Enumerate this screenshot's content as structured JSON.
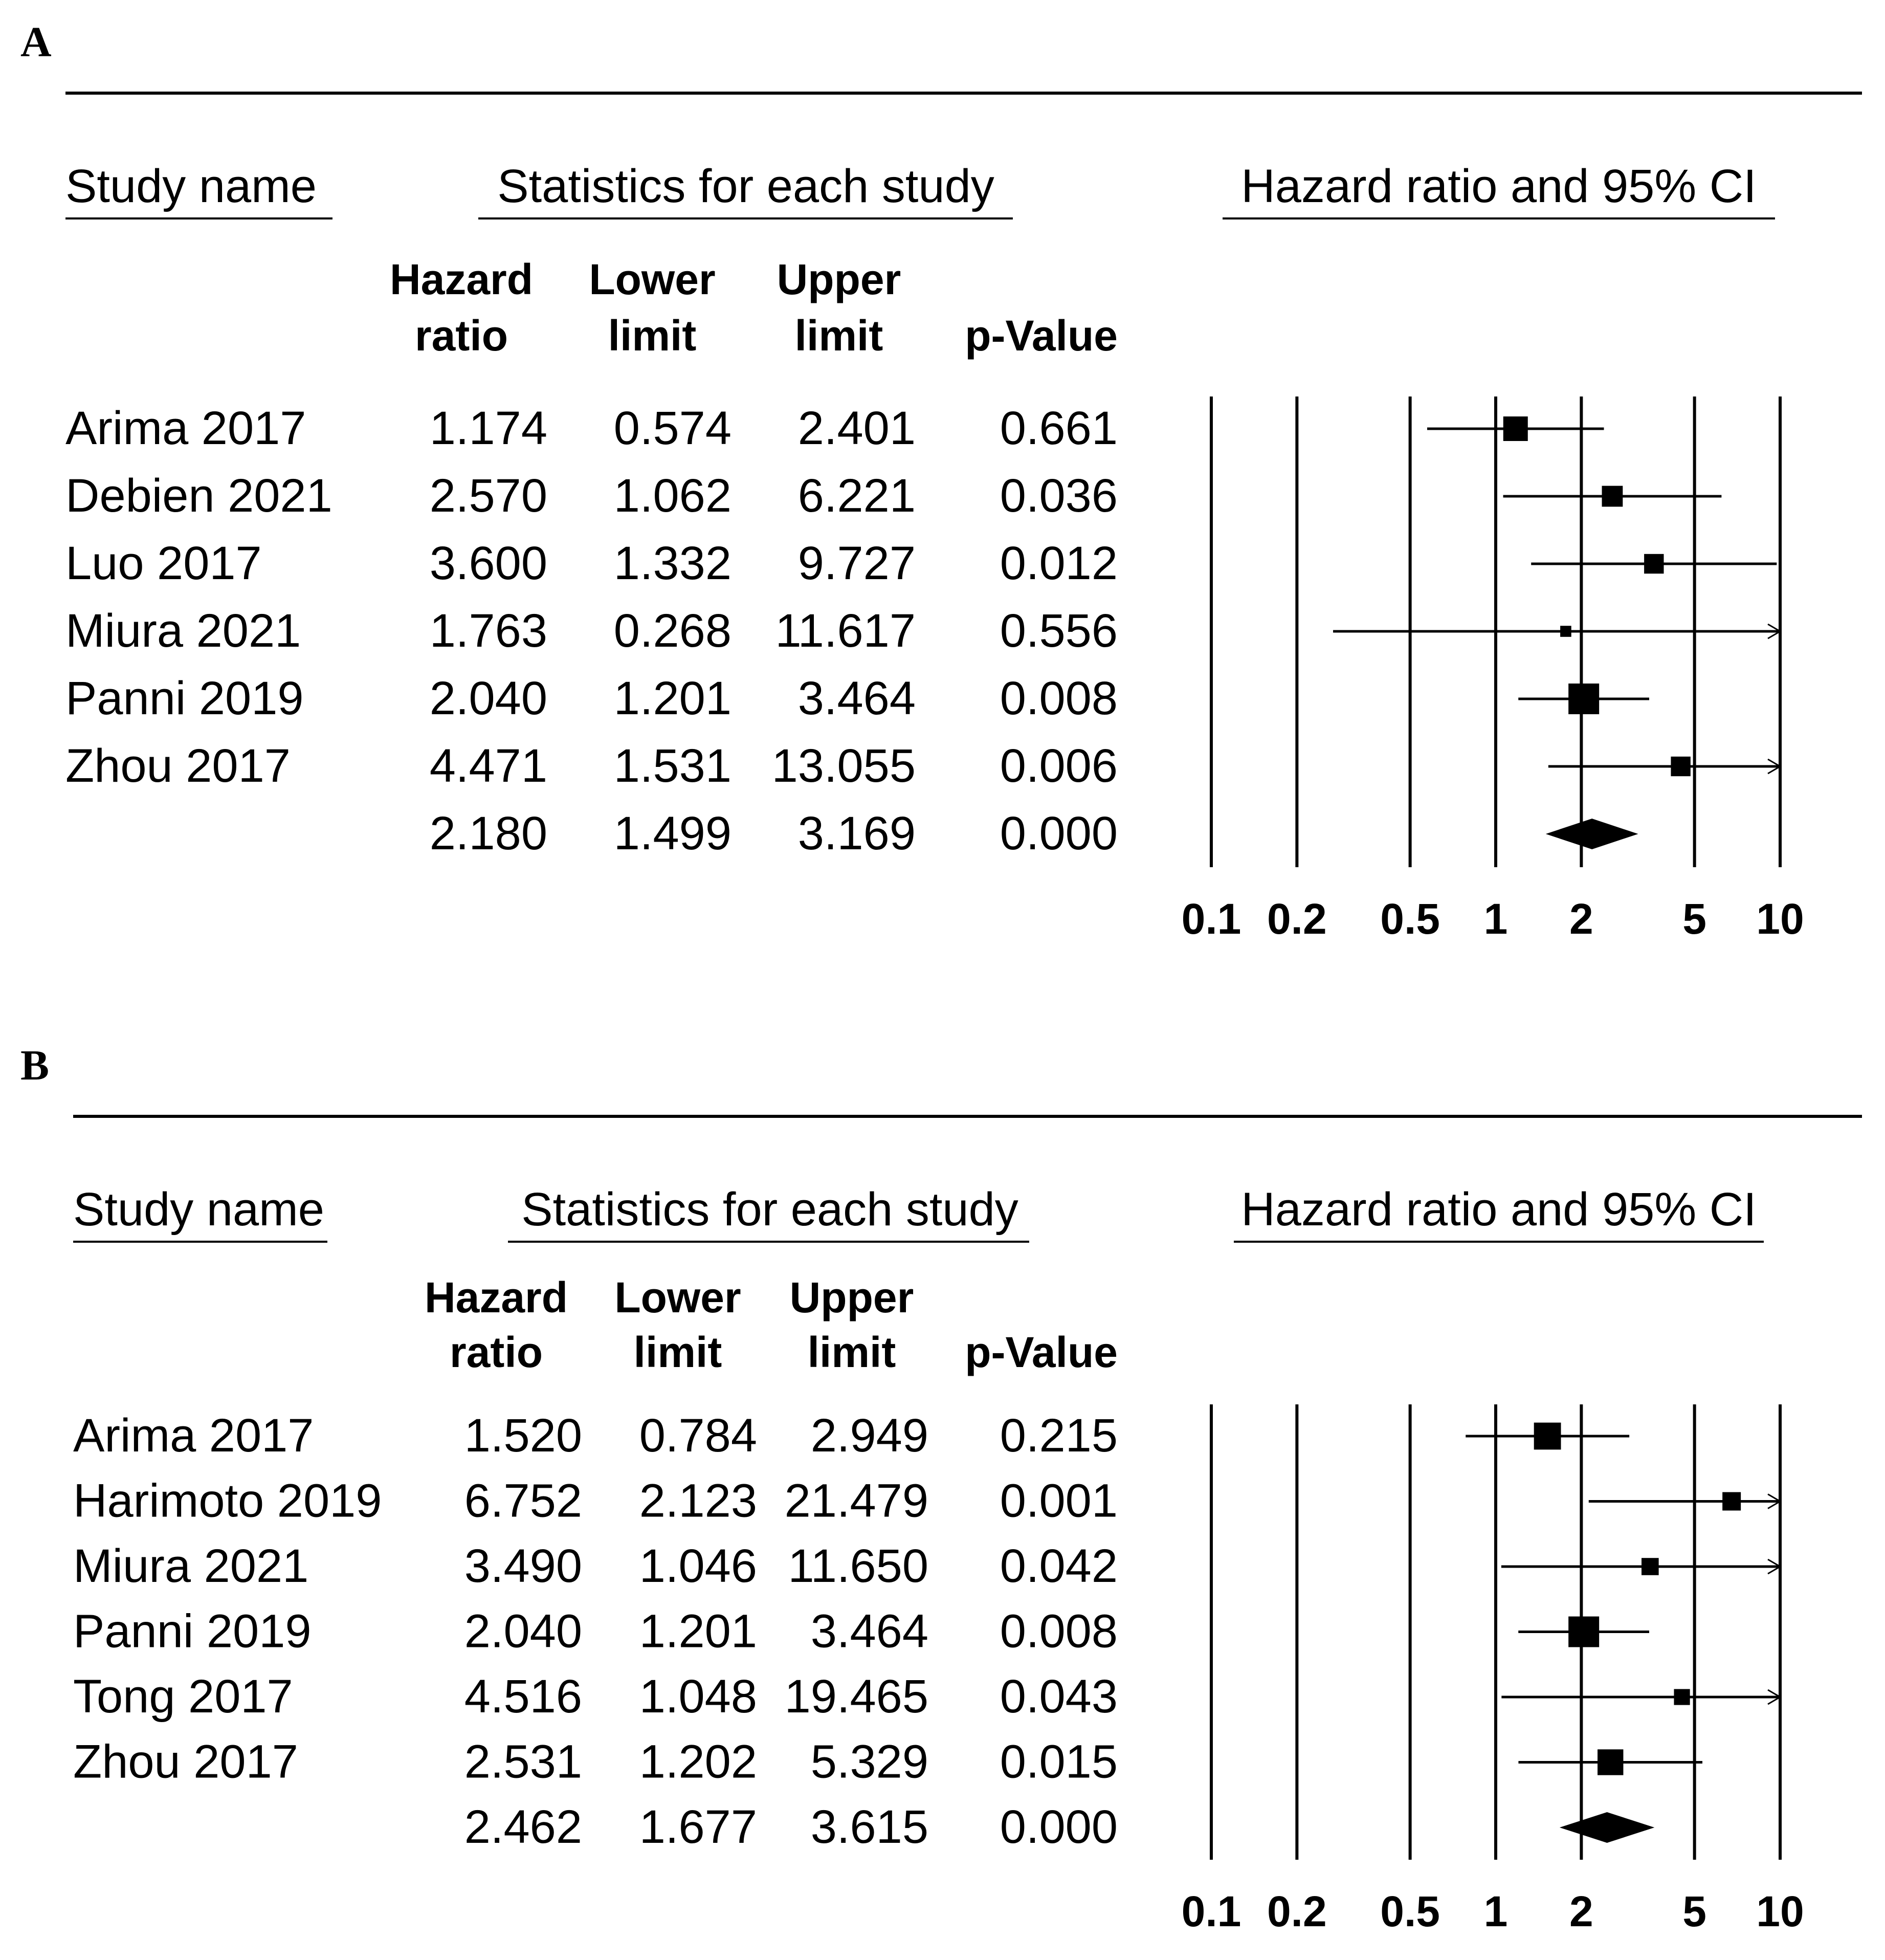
{
  "column_headers": {
    "study": "Study name",
    "stats_group": "Statistics for each study",
    "plot_group": "Hazard ratio and 95% CI",
    "hr_line1": "Hazard",
    "hr_line2": "ratio",
    "lower_line1": "Lower",
    "lower_line2": "limit",
    "upper_line1": "Upper",
    "upper_line2": "limit",
    "p": "p-Value"
  },
  "chart_data": [
    {
      "panel": "A",
      "type": "forest",
      "xscale": "log",
      "xlim": [
        0.1,
        10
      ],
      "xticks": [
        0.1,
        0.2,
        0.5,
        1,
        2,
        5,
        10
      ],
      "xtick_labels": [
        "0.1",
        "0.2",
        "0.5",
        "1",
        "2",
        "5",
        "10"
      ],
      "studies": [
        {
          "name": "Arima 2017",
          "hr": "1.174",
          "lower": "0.574",
          "upper": "2.401",
          "p": "0.661",
          "weight": 3
        },
        {
          "name": "Debien 2021",
          "hr": "2.570",
          "lower": "1.062",
          "upper": "6.221",
          "p": "0.036",
          "weight": 2.4
        },
        {
          "name": "Luo 2017",
          "hr": "3.600",
          "lower": "1.332",
          "upper": "9.727",
          "p": "0.012",
          "weight": 2.2
        },
        {
          "name": "Miura 2021",
          "hr": "1.763",
          "lower": "0.268",
          "upper": "11.617",
          "p": "0.556",
          "weight": 0.8
        },
        {
          "name": "Panni 2019",
          "hr": "2.040",
          "lower": "1.201",
          "upper": "3.464",
          "p": "0.008",
          "weight": 4
        },
        {
          "name": "Zhou 2017",
          "hr": "4.471",
          "lower": "1.531",
          "upper": "13.055",
          "p": "0.006",
          "weight": 2.2
        }
      ],
      "summary": {
        "hr": "2.180",
        "lower": "1.499",
        "upper": "3.169",
        "p": "0.000"
      }
    },
    {
      "panel": "B",
      "type": "forest",
      "xscale": "log",
      "xlim": [
        0.1,
        10
      ],
      "xticks": [
        0.1,
        0.2,
        0.5,
        1,
        2,
        5,
        10
      ],
      "xtick_labels": [
        "0.1",
        "0.2",
        "0.5",
        "1",
        "2",
        "5",
        "10"
      ],
      "studies": [
        {
          "name": "Arima 2017",
          "hr": "1.520",
          "lower": "0.784",
          "upper": "2.949",
          "p": "0.215",
          "weight": 3.4
        },
        {
          "name": "Harimoto 2019",
          "hr": "6.752",
          "lower": "2.123",
          "upper": "21.479",
          "p": "0.001",
          "weight": 2
        },
        {
          "name": "Miura 2021",
          "hr": "3.490",
          "lower": "1.046",
          "upper": "11.650",
          "p": "0.042",
          "weight": 1.8
        },
        {
          "name": "Panni 2019",
          "hr": "2.040",
          "lower": "1.201",
          "upper": "3.464",
          "p": "0.008",
          "weight": 4
        },
        {
          "name": "Tong 2017",
          "hr": "4.516",
          "lower": "1.048",
          "upper": "19.465",
          "p": "0.043",
          "weight": 1.6
        },
        {
          "name": "Zhou 2017",
          "hr": "2.531",
          "lower": "1.202",
          "upper": "5.329",
          "p": "0.015",
          "weight": 3.2
        }
      ],
      "summary": {
        "hr": "2.462",
        "lower": "1.677",
        "upper": "3.615",
        "p": "0.000"
      }
    }
  ]
}
